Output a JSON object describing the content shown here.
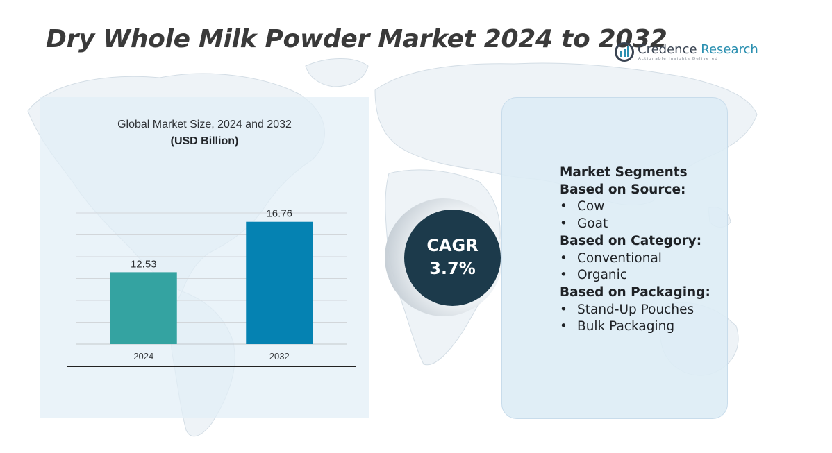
{
  "header": {
    "title": "Dry Whole Milk Powder Market 2024 to 2032"
  },
  "brand": {
    "name_part1": "Credence",
    "name_part2": "Research",
    "tagline": "Actionable Insights Delivered",
    "logo_icon": "credence-research-logo-icon"
  },
  "chart_panel": {
    "subtitle": "Global Market Size, 2024 and 2032",
    "unit": "(USD Billion)"
  },
  "chart_data": {
    "type": "bar",
    "title": "Global Market Size, 2024 and 2032",
    "ylabel": "(USD Billion)",
    "xlabel": "",
    "categories": [
      "2024",
      "2032"
    ],
    "values": [
      12.53,
      16.76
    ],
    "value_labels": [
      "12.53",
      "16.76"
    ],
    "bar_colors": [
      "#34a3a1",
      "#0582b2"
    ],
    "ylim": [
      6.5,
      17.5
    ],
    "grid": true,
    "legend": "none"
  },
  "cagr": {
    "label": "CAGR",
    "value": "3.7%"
  },
  "segments": {
    "heading": "Market Segments",
    "groups": [
      {
        "title": "Based on Source:",
        "items": [
          "Cow",
          "Goat"
        ]
      },
      {
        "title": "Based on Category:",
        "items": [
          "Conventional",
          "Organic"
        ]
      },
      {
        "title": "Based on Packaging:",
        "items": [
          "Stand-Up Pouches",
          "Bulk Packaging"
        ]
      }
    ]
  },
  "colors": {
    "title_text": "#3a3a3a",
    "cagr_circle": "#1c3a4b",
    "panel_background": "#e2eef6",
    "brand_accent": "#2a8fb0"
  }
}
